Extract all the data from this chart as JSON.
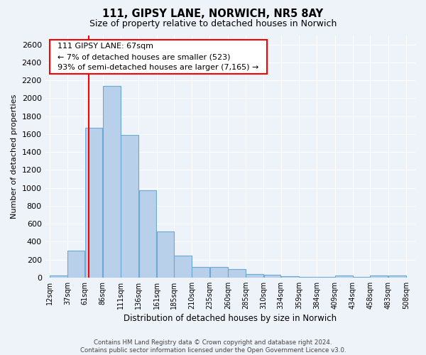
{
  "title_line1": "111, GIPSY LANE, NORWICH, NR5 8AY",
  "title_line2": "Size of property relative to detached houses in Norwich",
  "xlabel": "Distribution of detached houses by size in Norwich",
  "ylabel": "Number of detached properties",
  "annotation_line1": "  111 GIPSY LANE: 67sqm  ",
  "annotation_line2": "  ← 7% of detached houses are smaller (523)  ",
  "annotation_line3": "  93% of semi-detached houses are larger (7,165) →  ",
  "property_size": 67,
  "bar_left_edges": [
    12,
    37,
    61,
    86,
    111,
    136,
    161,
    185,
    210,
    235,
    260,
    285,
    310,
    334,
    359,
    384,
    409,
    434,
    458,
    483
  ],
  "bar_widths": [
    25,
    24,
    25,
    25,
    25,
    25,
    24,
    25,
    25,
    25,
    25,
    25,
    24,
    25,
    25,
    25,
    25,
    24,
    25,
    25
  ],
  "bar_heights": [
    20,
    300,
    1670,
    2140,
    1590,
    970,
    510,
    245,
    120,
    115,
    95,
    40,
    30,
    15,
    10,
    5,
    20,
    5,
    20,
    20
  ],
  "bar_color": "#b8d0ea",
  "bar_edge_color": "#6aaad4",
  "red_line_x": 67,
  "ylim": [
    0,
    2700
  ],
  "yticks": [
    0,
    200,
    400,
    600,
    800,
    1000,
    1200,
    1400,
    1600,
    1800,
    2000,
    2200,
    2400,
    2600
  ],
  "xtick_labels": [
    "12sqm",
    "37sqm",
    "61sqm",
    "86sqm",
    "111sqm",
    "136sqm",
    "161sqm",
    "185sqm",
    "210sqm",
    "235sqm",
    "260sqm",
    "285sqm",
    "310sqm",
    "334sqm",
    "359sqm",
    "384sqm",
    "409sqm",
    "434sqm",
    "458sqm",
    "483sqm",
    "508sqm"
  ],
  "xtick_positions": [
    12,
    37,
    61,
    86,
    111,
    136,
    161,
    185,
    210,
    235,
    260,
    285,
    310,
    334,
    359,
    384,
    409,
    434,
    458,
    483,
    508
  ],
  "footer_line1": "Contains HM Land Registry data © Crown copyright and database right 2024.",
  "footer_line2": "Contains public sector information licensed under the Open Government Licence v3.0.",
  "bg_color": "#eef2f9",
  "grid_color": "#ffffff",
  "xlim_left": 6,
  "xlim_right": 521
}
